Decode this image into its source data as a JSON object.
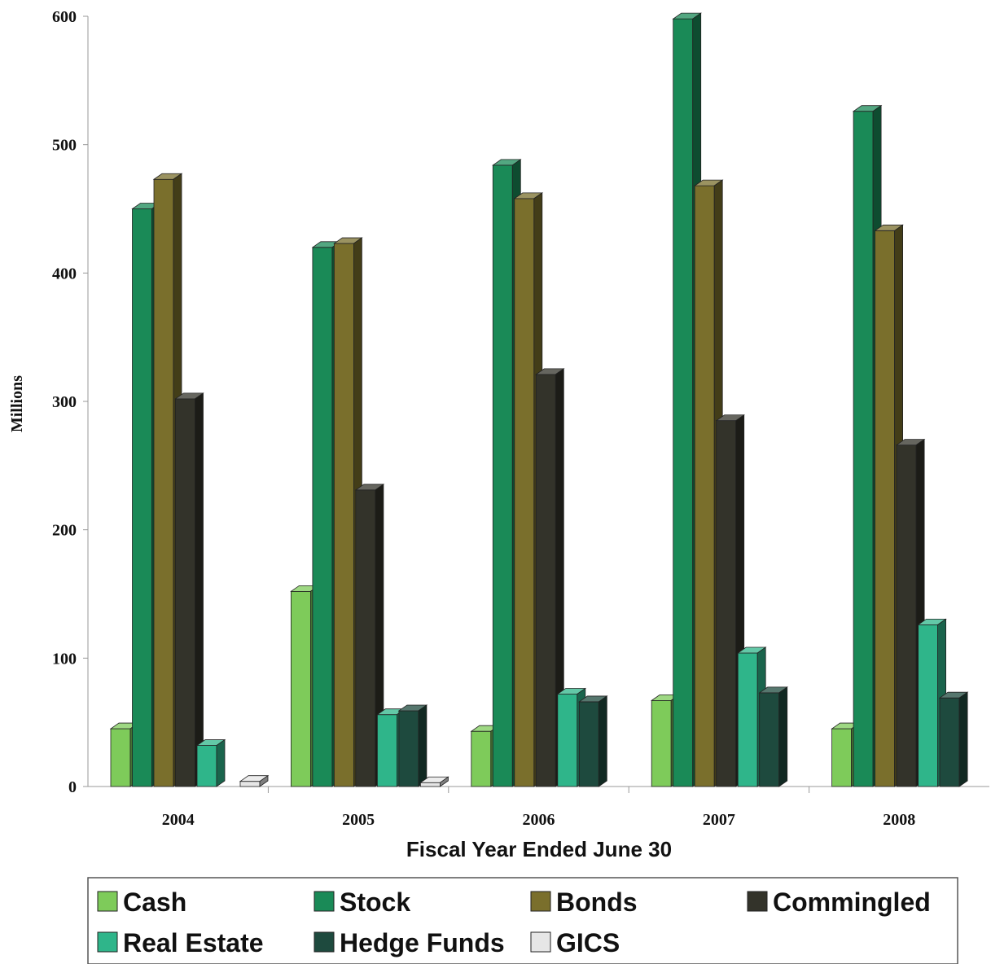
{
  "chart_data": {
    "type": "bar",
    "title": "",
    "xlabel": "Fiscal Year Ended June 30",
    "ylabel": "Millions",
    "ylim": [
      0,
      600
    ],
    "yticks": [
      0,
      100,
      200,
      300,
      400,
      500,
      600
    ],
    "categories": [
      "2004",
      "2005",
      "2006",
      "2007",
      "2008"
    ],
    "series": [
      {
        "name": "Cash",
        "values": [
          45,
          152,
          43,
          67,
          45
        ],
        "color": "#7ecb5a"
      },
      {
        "name": "Stock",
        "values": [
          450,
          420,
          484,
          598,
          526
        ],
        "color": "#1a8a57"
      },
      {
        "name": "Bonds",
        "values": [
          473,
          423,
          458,
          468,
          433
        ],
        "color": "#7a6f2c"
      },
      {
        "name": "Commingled",
        "values": [
          302,
          231,
          321,
          285,
          266
        ],
        "color": "#33332a"
      },
      {
        "name": "Real Estate",
        "values": [
          32,
          56,
          72,
          104,
          126
        ],
        "color": "#2fb58a"
      },
      {
        "name": "Hedge Funds",
        "values": [
          null,
          59,
          66,
          73,
          69
        ],
        "color": "#1e4a3e"
      },
      {
        "name": "GICS",
        "values": [
          4,
          3,
          null,
          null,
          null
        ],
        "color": "#e6e6e6"
      }
    ],
    "grid": false,
    "legend_position": "bottom"
  }
}
